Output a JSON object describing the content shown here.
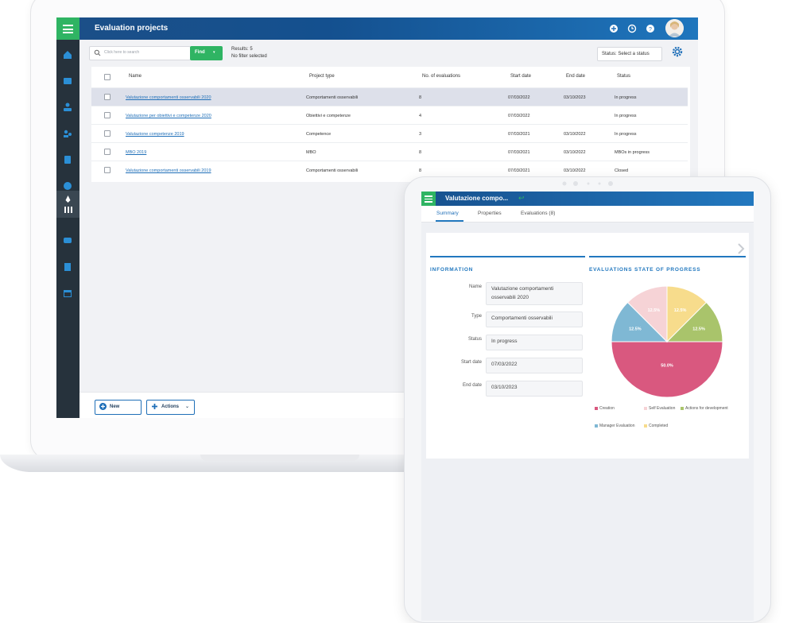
{
  "desktop": {
    "header": {
      "title": "Evaluation projects"
    },
    "toolbar": {
      "search_placeholder": "Click here to search",
      "find_label": "Find",
      "results_text": "Results: 5",
      "filter_text": "No filter selected",
      "status_select": "Status: Select a status"
    },
    "table": {
      "columns": [
        "Name",
        "Project type",
        "No. of evaluations",
        "Start date",
        "End date",
        "Status"
      ],
      "rows": [
        {
          "name": "Valutazione comportamenti osservabili 2020",
          "type": "Comportamenti osservabili",
          "count": "8",
          "start": "07/03/2022",
          "end": "03/10/2023",
          "status": "In progress"
        },
        {
          "name": "Valutazione per obiettivi e competenze 2020",
          "type": "Obiettivi e competenze",
          "count": "4",
          "start": "07/03/2022",
          "end": "",
          "status": "In progress"
        },
        {
          "name": "Valutazione competenze 2019",
          "type": "Competence",
          "count": "3",
          "start": "07/03/2021",
          "end": "03/10/2022",
          "status": "In progress"
        },
        {
          "name": "MBO 2019",
          "type": "MBO",
          "count": "8",
          "start": "07/03/2021",
          "end": "03/10/2022",
          "status": "MBOs in progress"
        },
        {
          "name": "Valutazione comportamenti osservabili 2019",
          "type": "Comportamenti osservabili",
          "count": "8",
          "start": "07/03/2021",
          "end": "03/10/2022",
          "status": "Closed"
        }
      ]
    },
    "footer": {
      "new_label": "New",
      "actions_label": "Actions"
    }
  },
  "tablet": {
    "header": {
      "title": "Valutazione compo..."
    },
    "tabs": [
      "Summary",
      "Properties",
      "Evaluations (8)"
    ],
    "information": {
      "title": "INFORMATION",
      "fields": [
        {
          "label": "Name",
          "value": "Valutazione comportamenti osservabili 2020"
        },
        {
          "label": "Type",
          "value": "Comportamenti osservabili"
        },
        {
          "label": "Status",
          "value": "In progress"
        },
        {
          "label": "Start date",
          "value": "07/03/2022"
        },
        {
          "label": "End date",
          "value": "03/10/2023"
        }
      ]
    },
    "progress": {
      "title": "EVALUATIONS STATE OF PROGRESS"
    }
  },
  "chart_data": {
    "type": "pie",
    "title": "EVALUATIONS STATE OF PROGRESS",
    "categories": [
      "Creation",
      "Manager Evaluation",
      "Self Evaluation",
      "Completed",
      "Actions for development"
    ],
    "values": [
      50.0,
      12.5,
      12.5,
      12.5,
      12.5
    ],
    "labels": [
      "50.0%",
      "12.5%",
      "12.5%",
      "12.5%",
      "12.5%"
    ],
    "colors": [
      "#d9587f",
      "#7fb8d4",
      "#f6d3d6",
      "#f7dc8c",
      "#a9c46b"
    ]
  }
}
